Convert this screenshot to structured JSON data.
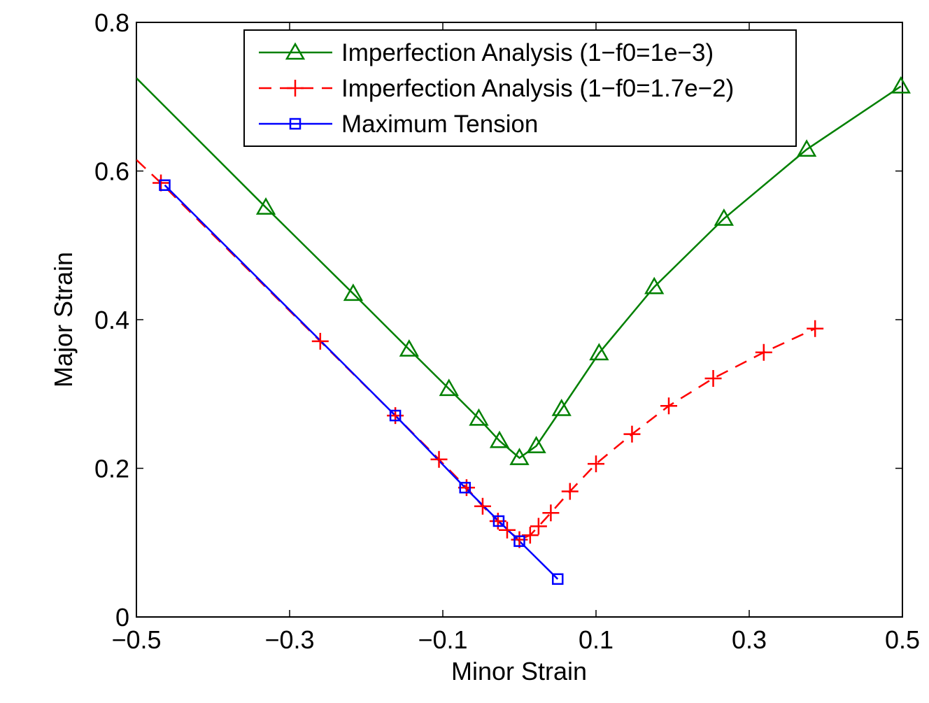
{
  "chart_data": {
    "type": "line",
    "title": "",
    "xlabel": "Minor Strain",
    "ylabel": "Major Strain",
    "xlim": [
      -0.5,
      0.5
    ],
    "ylim": [
      0,
      0.8
    ],
    "xticks": [
      -0.5,
      -0.3,
      -0.1,
      0.1,
      0.3,
      0.5
    ],
    "xtick_labels": [
      "−0.5",
      "−0.3",
      "−0.1",
      "0.1",
      "0.3",
      "0.5"
    ],
    "yticks": [
      0,
      0.2,
      0.4,
      0.6,
      0.8
    ],
    "ytick_labels": [
      "0",
      "0.2",
      "0.4",
      "0.6",
      "0.8"
    ],
    "grid": false,
    "legend_position": "top",
    "series": [
      {
        "name": "Imperfection Analysis (1−f0=1e−3)",
        "color": "#008000",
        "marker": "triangle",
        "line": "solid",
        "x": [
          -0.5,
          -0.331,
          -0.217,
          -0.144,
          -0.092,
          -0.053,
          -0.026,
          0.0,
          0.022,
          0.055,
          0.104,
          0.176,
          0.267,
          0.375,
          0.498
        ],
        "y": [
          0.725,
          0.551,
          0.435,
          0.36,
          0.307,
          0.267,
          0.237,
          0.214,
          0.23,
          0.28,
          0.355,
          0.444,
          0.536,
          0.629,
          0.714
        ],
        "marked": [
          false,
          true,
          true,
          true,
          true,
          true,
          true,
          true,
          true,
          true,
          true,
          true,
          true,
          true,
          true
        ]
      },
      {
        "name": "Imperfection Analysis (1−f0=1.7e−2)",
        "color": "#ff0000",
        "marker": "plus",
        "line": "dashed",
        "x": [
          -0.5,
          -0.468,
          -0.26,
          -0.162,
          -0.105,
          -0.069,
          -0.048,
          -0.028,
          -0.016,
          0.0,
          0.014,
          0.025,
          0.041,
          0.066,
          0.1,
          0.147,
          0.195,
          0.253,
          0.319,
          0.386
        ],
        "y": [
          0.615,
          0.584,
          0.371,
          0.271,
          0.212,
          0.174,
          0.149,
          0.129,
          0.117,
          0.104,
          0.11,
          0.122,
          0.14,
          0.169,
          0.206,
          0.246,
          0.284,
          0.321,
          0.356,
          0.388
        ],
        "marked": [
          false,
          true,
          true,
          true,
          true,
          true,
          true,
          true,
          true,
          true,
          true,
          true,
          true,
          true,
          true,
          true,
          true,
          true,
          true,
          true
        ]
      },
      {
        "name": "Maximum Tension",
        "color": "#0000ff",
        "marker": "square",
        "line": "solid",
        "x": [
          -0.463,
          -0.162,
          -0.071,
          -0.027,
          0.0,
          0.05
        ],
        "y": [
          0.581,
          0.271,
          0.174,
          0.129,
          0.102,
          0.051
        ],
        "marked": [
          true,
          true,
          true,
          true,
          true,
          true
        ]
      }
    ]
  }
}
